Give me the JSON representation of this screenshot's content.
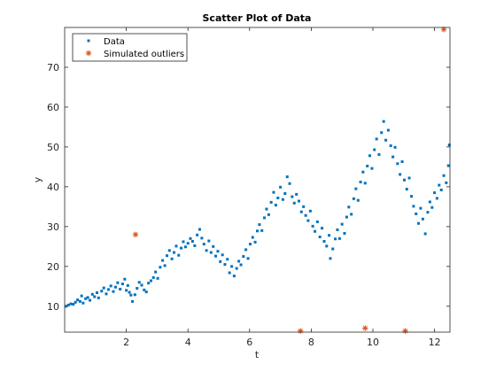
{
  "chart_data": {
    "type": "scatter",
    "title": "Scatter Plot of Data",
    "xlabel": "t",
    "ylabel": "y",
    "xlim": [
      0,
      12.5
    ],
    "ylim": [
      3.5,
      80
    ],
    "xticks": [
      2,
      4,
      6,
      8,
      10,
      12
    ],
    "yticks": [
      10,
      20,
      30,
      40,
      50,
      60,
      70
    ],
    "grid": false,
    "legend_position": "top-left",
    "series": [
      {
        "name": "Data",
        "marker": "dot",
        "color": "#0072BD",
        "points": [
          [
            0.05,
            10.0
          ],
          [
            0.12,
            10.3
          ],
          [
            0.2,
            10.6
          ],
          [
            0.28,
            10.5
          ],
          [
            0.35,
            11.0
          ],
          [
            0.42,
            11.6
          ],
          [
            0.5,
            11.2
          ],
          [
            0.55,
            12.6
          ],
          [
            0.6,
            10.8
          ],
          [
            0.68,
            11.9
          ],
          [
            0.75,
            12.2
          ],
          [
            0.82,
            11.5
          ],
          [
            0.9,
            13.0
          ],
          [
            0.97,
            12.4
          ],
          [
            1.05,
            13.4
          ],
          [
            1.1,
            12.1
          ],
          [
            1.2,
            13.8
          ],
          [
            1.27,
            14.6
          ],
          [
            1.35,
            13.1
          ],
          [
            1.42,
            14.2
          ],
          [
            1.5,
            15.1
          ],
          [
            1.58,
            13.7
          ],
          [
            1.65,
            14.8
          ],
          [
            1.72,
            15.9
          ],
          [
            1.8,
            14.3
          ],
          [
            1.88,
            15.6
          ],
          [
            1.95,
            16.8
          ],
          [
            2.0,
            14.0
          ],
          [
            2.05,
            15.2
          ],
          [
            2.1,
            13.5
          ],
          [
            2.15,
            12.8
          ],
          [
            2.2,
            11.2
          ],
          [
            2.28,
            12.9
          ],
          [
            2.35,
            14.5
          ],
          [
            2.42,
            16.0
          ],
          [
            2.5,
            15.3
          ],
          [
            2.58,
            14.1
          ],
          [
            2.65,
            13.6
          ],
          [
            2.72,
            15.8
          ],
          [
            2.8,
            16.4
          ],
          [
            2.88,
            17.2
          ],
          [
            2.95,
            18.6
          ],
          [
            3.02,
            17.0
          ],
          [
            3.1,
            19.8
          ],
          [
            3.18,
            21.5
          ],
          [
            3.25,
            20.2
          ],
          [
            3.32,
            22.7
          ],
          [
            3.4,
            24.0
          ],
          [
            3.48,
            21.9
          ],
          [
            3.55,
            23.5
          ],
          [
            3.62,
            25.1
          ],
          [
            3.7,
            22.8
          ],
          [
            3.78,
            24.6
          ],
          [
            3.85,
            26.2
          ],
          [
            3.92,
            24.9
          ],
          [
            4.0,
            25.8
          ],
          [
            4.08,
            27.0
          ],
          [
            4.15,
            26.3
          ],
          [
            4.22,
            25.2
          ],
          [
            4.3,
            27.9
          ],
          [
            4.38,
            29.3
          ],
          [
            4.45,
            27.1
          ],
          [
            4.52,
            25.6
          ],
          [
            4.6,
            24.0
          ],
          [
            4.68,
            26.4
          ],
          [
            4.75,
            23.5
          ],
          [
            4.82,
            25.0
          ],
          [
            4.9,
            22.6
          ],
          [
            4.97,
            23.8
          ],
          [
            5.05,
            21.2
          ],
          [
            5.12,
            22.9
          ],
          [
            5.2,
            20.5
          ],
          [
            5.28,
            21.8
          ],
          [
            5.35,
            18.4
          ],
          [
            5.42,
            20.0
          ],
          [
            5.5,
            17.6
          ],
          [
            5.58,
            19.5
          ],
          [
            5.65,
            21.3
          ],
          [
            5.72,
            20.4
          ],
          [
            5.8,
            22.5
          ],
          [
            5.88,
            24.2
          ],
          [
            5.95,
            22.0
          ],
          [
            6.02,
            25.6
          ],
          [
            6.1,
            27.3
          ],
          [
            6.18,
            26.1
          ],
          [
            6.25,
            28.9
          ],
          [
            6.32,
            30.5
          ],
          [
            6.4,
            29.0
          ],
          [
            6.48,
            32.2
          ],
          [
            6.55,
            34.4
          ],
          [
            6.62,
            33.0
          ],
          [
            6.7,
            36.1
          ],
          [
            6.78,
            38.6
          ],
          [
            6.85,
            35.4
          ],
          [
            6.92,
            37.2
          ],
          [
            7.0,
            39.9
          ],
          [
            7.08,
            36.8
          ],
          [
            7.15,
            38.3
          ],
          [
            7.22,
            42.5
          ],
          [
            7.3,
            40.8
          ],
          [
            7.38,
            37.5
          ],
          [
            7.45,
            35.9
          ],
          [
            7.52,
            38.1
          ],
          [
            7.6,
            36.4
          ],
          [
            7.68,
            33.7
          ],
          [
            7.75,
            35.0
          ],
          [
            7.82,
            32.8
          ],
          [
            7.9,
            31.5
          ],
          [
            7.97,
            33.9
          ],
          [
            8.05,
            30.1
          ],
          [
            8.12,
            28.8
          ],
          [
            8.2,
            31.2
          ],
          [
            8.28,
            27.4
          ],
          [
            8.35,
            29.6
          ],
          [
            8.42,
            26.3
          ],
          [
            8.5,
            25.1
          ],
          [
            8.58,
            27.8
          ],
          [
            8.62,
            22.0
          ],
          [
            8.7,
            24.4
          ],
          [
            8.78,
            26.9
          ],
          [
            8.85,
            29.2
          ],
          [
            8.92,
            27.0
          ],
          [
            9.0,
            30.6
          ],
          [
            9.08,
            28.3
          ],
          [
            9.15,
            32.4
          ],
          [
            9.22,
            34.9
          ],
          [
            9.3,
            33.1
          ],
          [
            9.38,
            37.0
          ],
          [
            9.45,
            39.5
          ],
          [
            9.52,
            36.6
          ],
          [
            9.6,
            41.2
          ],
          [
            9.68,
            43.7
          ],
          [
            9.75,
            40.9
          ],
          [
            9.82,
            45.2
          ],
          [
            9.9,
            47.8
          ],
          [
            9.97,
            44.6
          ],
          [
            10.05,
            49.3
          ],
          [
            10.12,
            52.0
          ],
          [
            10.2,
            48.1
          ],
          [
            10.28,
            53.6
          ],
          [
            10.35,
            56.4
          ],
          [
            10.42,
            51.7
          ],
          [
            10.5,
            54.2
          ],
          [
            10.58,
            50.3
          ],
          [
            10.65,
            47.5
          ],
          [
            10.72,
            49.9
          ],
          [
            10.8,
            45.8
          ],
          [
            10.88,
            43.1
          ],
          [
            10.95,
            46.3
          ],
          [
            11.02,
            41.7
          ],
          [
            11.1,
            39.4
          ],
          [
            11.18,
            42.2
          ],
          [
            11.25,
            37.6
          ],
          [
            11.32,
            35.1
          ],
          [
            11.4,
            33.2
          ],
          [
            11.48,
            30.8
          ],
          [
            11.55,
            34.6
          ],
          [
            11.62,
            31.9
          ],
          [
            11.7,
            28.2
          ],
          [
            11.78,
            33.6
          ],
          [
            11.85,
            36.2
          ],
          [
            11.92,
            34.8
          ],
          [
            12.0,
            38.5
          ],
          [
            12.08,
            37.1
          ],
          [
            12.15,
            40.4
          ],
          [
            12.22,
            39.2
          ],
          [
            12.3,
            42.8
          ],
          [
            12.38,
            41.0
          ],
          [
            12.45,
            45.3
          ],
          [
            12.48,
            50.5
          ]
        ]
      },
      {
        "name": "Simulated outliers",
        "marker": "asterisk",
        "color": "#D95319",
        "points": [
          [
            2.3,
            28.0
          ],
          [
            7.65,
            3.8
          ],
          [
            9.75,
            4.5
          ],
          [
            11.05,
            3.8
          ],
          [
            12.3,
            79.5
          ]
        ]
      }
    ]
  }
}
